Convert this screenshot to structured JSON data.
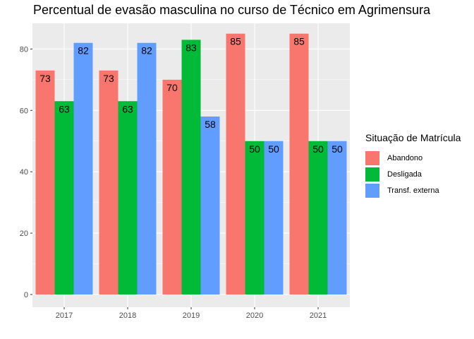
{
  "chart_data": {
    "type": "bar",
    "title": "Percentual de evasão masculina no curso de Técnico em Agrimensura",
    "xlabel": "",
    "ylabel": "",
    "categories": [
      "2017",
      "2018",
      "2019",
      "2020",
      "2021"
    ],
    "series": [
      {
        "name": "Abandono",
        "color": "#F8766D",
        "values": [
          73,
          73,
          70,
          85,
          85
        ]
      },
      {
        "name": "Desligada",
        "color": "#00BA38",
        "values": [
          63,
          63,
          83,
          50,
          50
        ]
      },
      {
        "name": "Transf. externa",
        "color": "#619CFF",
        "values": [
          82,
          82,
          58,
          50,
          50
        ]
      }
    ],
    "ylim": [
      0,
      89
    ],
    "yticks": [
      0,
      20,
      40,
      60,
      80
    ],
    "legend": {
      "title": "Situação de Matrícula",
      "position": "right"
    },
    "grid": true,
    "background": "#EBEBEB"
  }
}
